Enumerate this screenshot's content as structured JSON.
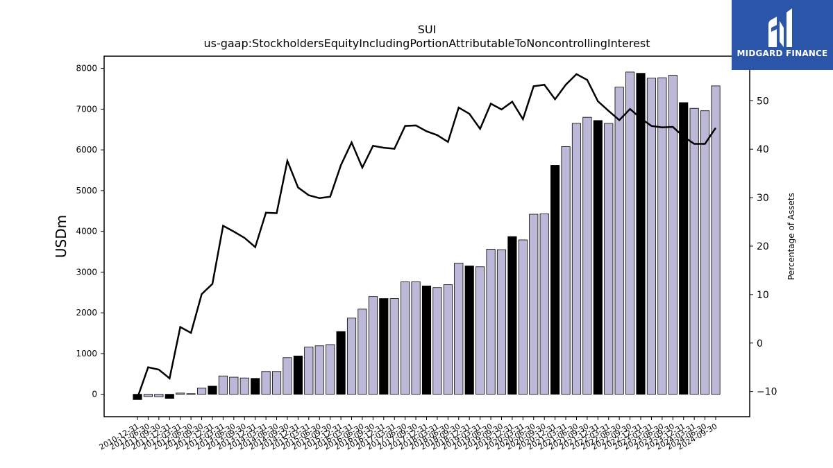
{
  "chart_data": {
    "type": "bar",
    "title": "SUI",
    "subtitle": "us-gaap:StockholdersEquityIncludingPortionAttributableToNoncontrollingInterest",
    "ylabel": "USDm",
    "y2label": "Percentage of Assets",
    "ylim": [
      -550,
      8300
    ],
    "y2lim": [
      -15.2,
      59.2
    ],
    "yticks": [
      0,
      1000,
      2000,
      3000,
      4000,
      5000,
      6000,
      7000,
      8000
    ],
    "y2ticks": [
      -10,
      0,
      10,
      20,
      30,
      40,
      50
    ],
    "bar_colors": {
      "annual": "#000000",
      "quarterly": "#bcb8d8",
      "edge": "#000000"
    },
    "line_color": "#000000",
    "categories": [
      "2010-12-31",
      "2011-06-30",
      "2011-09-30",
      "2011-12-31",
      "2012-03-31",
      "2012-06-30",
      "2012-09-30",
      "2012-12-31",
      "2013-03-31",
      "2013-06-30",
      "2013-09-30",
      "2013-12-31",
      "2014-03-31",
      "2014-06-30",
      "2014-09-30",
      "2014-12-31",
      "2015-03-31",
      "2015-06-30",
      "2015-09-30",
      "2015-12-31",
      "2016-03-31",
      "2016-06-30",
      "2016-09-30",
      "2016-12-31",
      "2017-03-31",
      "2017-06-30",
      "2017-09-30",
      "2017-12-31",
      "2018-03-31",
      "2018-06-30",
      "2018-09-30",
      "2018-12-31",
      "2019-03-31",
      "2019-06-30",
      "2019-09-30",
      "2019-12-31",
      "2020-03-31",
      "2020-06-30",
      "2020-09-30",
      "2020-12-31",
      "2021-03-31",
      "2021-06-30",
      "2021-09-30",
      "2021-12-31",
      "2022-03-31",
      "2022-06-30",
      "2022-09-30",
      "2022-12-31",
      "2023-03-31",
      "2023-06-30",
      "2023-09-30",
      "2023-12-31",
      "2024-03-31",
      "2024-06-30",
      "2024-09-30"
    ],
    "series": [
      {
        "type": "bar",
        "values": [
          -130,
          -55,
          -60,
          -100,
          30,
          15,
          150,
          200,
          450,
          420,
          400,
          390,
          560,
          560,
          900,
          940,
          1160,
          1190,
          1220,
          1540,
          1870,
          2090,
          2400,
          2350,
          2350,
          2760,
          2760,
          2660,
          2620,
          2690,
          3220,
          3150,
          3130,
          3560,
          3550,
          3870,
          3790,
          4420,
          4430,
          5620,
          6080,
          6650,
          6800,
          6720,
          6650,
          7540,
          7910,
          7880,
          7760,
          7770,
          7830,
          7160,
          7020,
          6960,
          7570
        ],
        "annual_flags": [
          1,
          0,
          0,
          1,
          0,
          0,
          0,
          1,
          0,
          0,
          0,
          1,
          0,
          0,
          0,
          1,
          0,
          0,
          0,
          1,
          0,
          0,
          0,
          1,
          0,
          0,
          0,
          1,
          0,
          0,
          0,
          1,
          0,
          0,
          0,
          1,
          0,
          0,
          0,
          1,
          0,
          0,
          0,
          1,
          0,
          0,
          0,
          1,
          0,
          0,
          0,
          1,
          0,
          0,
          0
        ]
      },
      {
        "type": "line",
        "axis": "right",
        "values": [
          -11.3,
          -5.0,
          -5.5,
          -7.3,
          3.3,
          2.1,
          10.1,
          12.2,
          24.2,
          23.0,
          21.7,
          19.8,
          26.9,
          26.8,
          37.6,
          32.1,
          30.5,
          29.9,
          30.2,
          36.7,
          41.4,
          36.2,
          40.7,
          40.3,
          40.1,
          44.8,
          44.9,
          43.7,
          42.9,
          41.5,
          48.6,
          47.3,
          44.2,
          49.4,
          48.2,
          49.8,
          46.2,
          53.0,
          53.3,
          50.3,
          53.3,
          55.5,
          54.3,
          49.9,
          47.9,
          46.0,
          48.3,
          46.4,
          44.8,
          44.5,
          44.6,
          42.6,
          41.1,
          41.1,
          44.4
        ]
      }
    ],
    "grid": false
  },
  "logo": {
    "name": "midgard-logo-icon",
    "text": "MIDGARD FINANCE"
  }
}
